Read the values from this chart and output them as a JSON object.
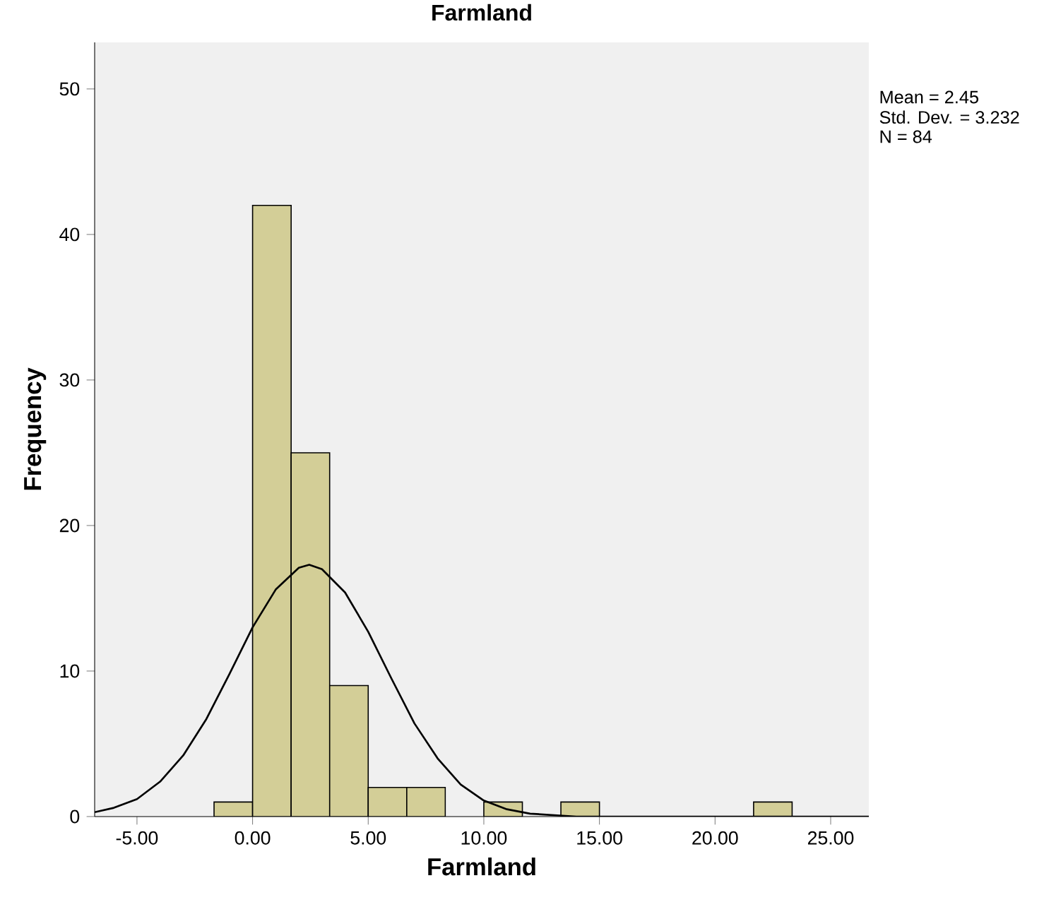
{
  "chart_data": {
    "type": "histogram",
    "title": "Farmland",
    "xlabel": "Farmland",
    "ylabel": "Frequency",
    "bins": [
      -1.667,
      0,
      1.667,
      3.333,
      5,
      6.667,
      8.333,
      10,
      11.667,
      13.333,
      15,
      16.667,
      18.333,
      20,
      21.667,
      23.333
    ],
    "values": [
      1,
      42,
      25,
      9,
      2,
      2,
      0,
      1,
      0,
      1,
      0,
      0,
      0,
      0,
      1
    ],
    "color": "#d3ce97",
    "series": [
      {
        "type": "line",
        "color": "#000000",
        "x": [
          -6.83,
          -6,
          -5,
          -4,
          -3,
          -2,
          -1,
          0,
          1,
          2,
          2.45,
          3,
          4,
          5,
          6,
          7,
          8,
          9,
          10,
          11,
          12,
          13,
          14,
          16,
          20,
          26.65
        ],
        "values": [
          0.3,
          0.6,
          1.2,
          2.4,
          4.2,
          6.7,
          9.8,
          13.0,
          15.6,
          17.1,
          17.3,
          17.0,
          15.4,
          12.7,
          9.5,
          6.4,
          4.0,
          2.2,
          1.1,
          0.5,
          0.2,
          0.1,
          0.0,
          0.0,
          0.0,
          0.0
        ]
      }
    ],
    "xlim": [
      -6.83,
      26.65
    ],
    "ylim": [
      0,
      53.2
    ],
    "xticks": [
      {
        "value": -5,
        "label": "-5.00"
      },
      {
        "value": 0,
        "label": "0.00"
      },
      {
        "value": 5,
        "label": "5.00"
      },
      {
        "value": 10,
        "label": "10.00"
      },
      {
        "value": 15,
        "label": "15.00"
      },
      {
        "value": 20,
        "label": "20.00"
      },
      {
        "value": 25,
        "label": "25.00"
      }
    ],
    "yticks": [
      0,
      10,
      20,
      30,
      40,
      50
    ],
    "annotations": [
      "Mean = 2.45",
      "Std. Dev. = 3.232",
      "N = 84"
    ]
  }
}
